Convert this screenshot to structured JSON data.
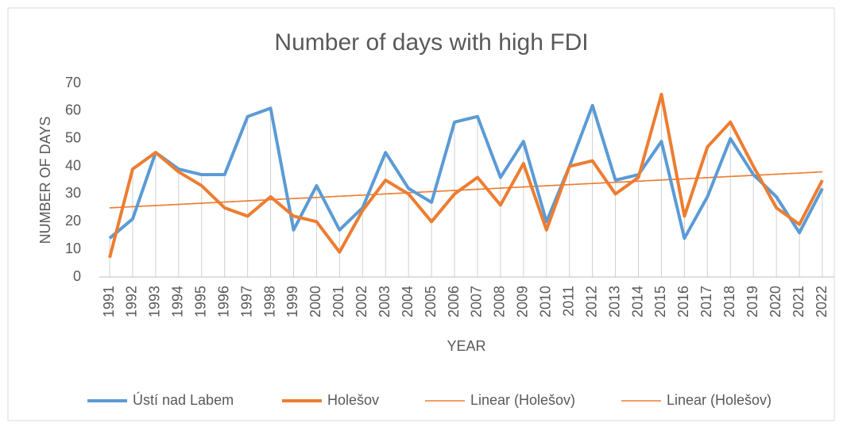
{
  "chart_data": {
    "type": "line",
    "title": "Number of days with high FDI",
    "x_label": "YEAR",
    "y_label": "NUMBER OF DAYS",
    "categories": [
      "1991",
      "1992",
      "1993",
      "1994",
      "1995",
      "1996",
      "1997",
      "1998",
      "1999",
      "2000",
      "2001",
      "2002",
      "2003",
      "2004",
      "2005",
      "2006",
      "2007",
      "2008",
      "2009",
      "2010",
      "2011",
      "2012",
      "2013",
      "2014",
      "2015",
      "2016",
      "2017",
      "2018",
      "2019",
      "2020",
      "2021",
      "2022"
    ],
    "series": [
      {
        "name": "Ústí nad Labem",
        "color": "#5b9bd5",
        "values": [
          14,
          21,
          45,
          39,
          37,
          37,
          58,
          61,
          17,
          33,
          17,
          25,
          45,
          32,
          27,
          56,
          58,
          36,
          49,
          20,
          40,
          62,
          35,
          37,
          49,
          14,
          29,
          50,
          37,
          29,
          16,
          32
        ]
      },
      {
        "name": "Holešov",
        "color": "#ed7d31",
        "values": [
          7,
          39,
          45,
          38,
          33,
          25,
          22,
          29,
          22,
          20,
          9,
          24,
          35,
          30,
          20,
          30,
          36,
          26,
          41,
          17,
          40,
          42,
          30,
          36,
          66,
          22,
          47,
          56,
          40,
          25,
          19,
          35
        ]
      }
    ],
    "trendlines": [
      {
        "name": "Linear (Holešov)",
        "color": "#ed7d31",
        "values": [
          25,
          38
        ]
      },
      {
        "name": "Linear (Holešov)",
        "color": "#ed7d31",
        "values": [
          25,
          38
        ]
      }
    ],
    "ylim": [
      0,
      70
    ],
    "yticks": [
      0,
      10,
      20,
      30,
      40,
      50,
      60,
      70
    ],
    "legend": "bottom"
  }
}
